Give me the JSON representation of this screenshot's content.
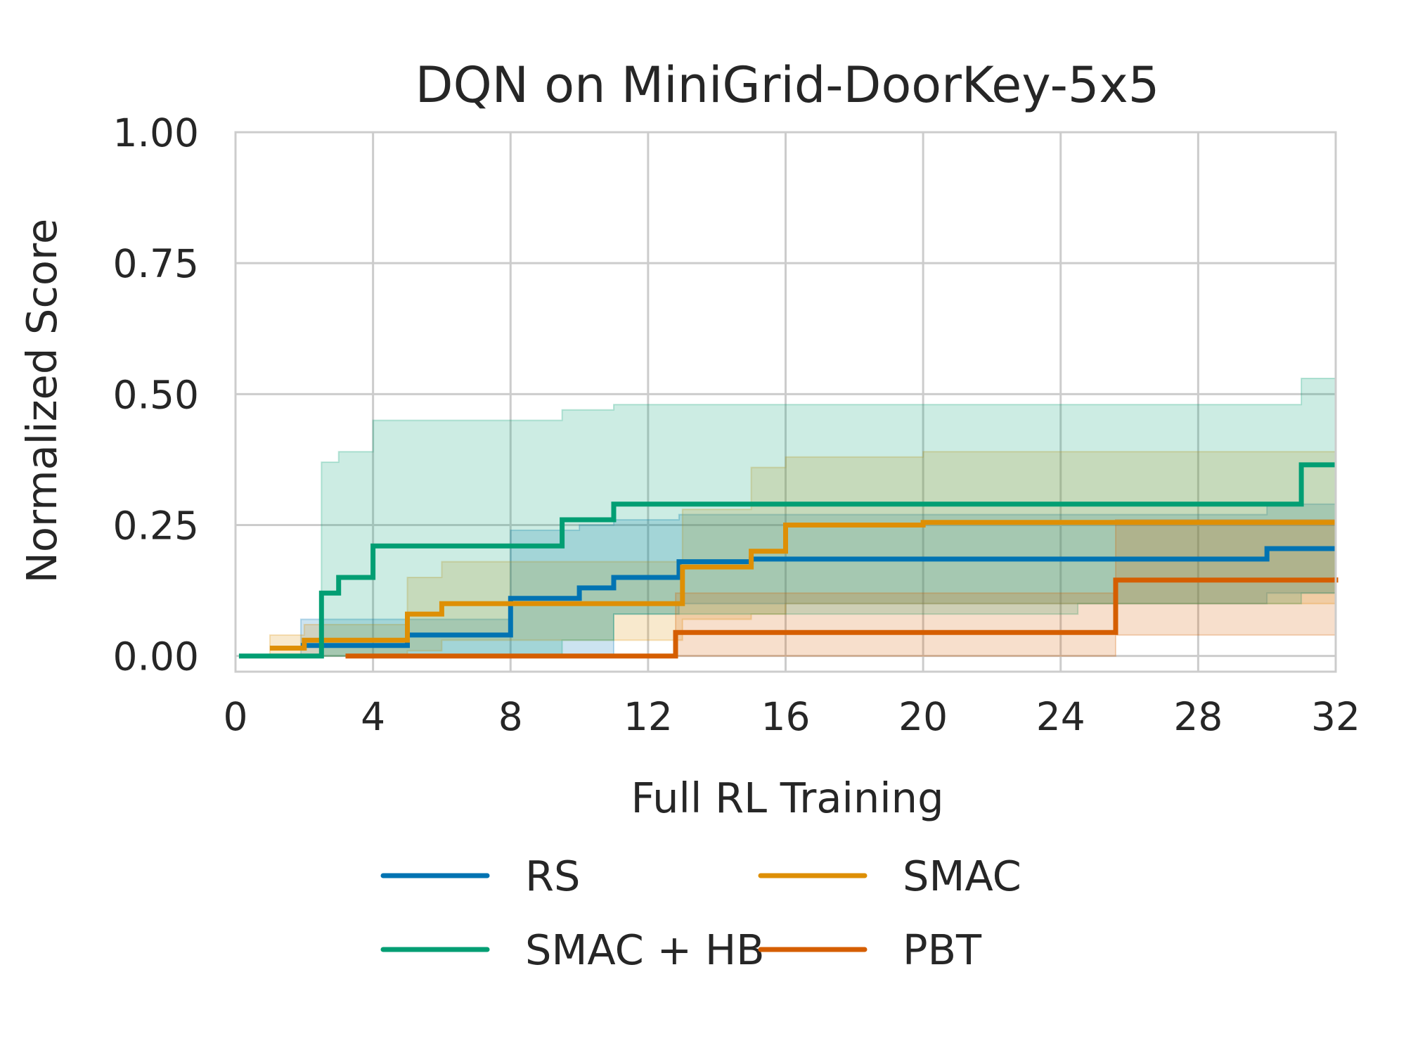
{
  "chart_data": {
    "type": "line",
    "title": "DQN on MiniGrid-DoorKey-5x5",
    "xlabel": "Full RL Training",
    "ylabel": "Normalized Score",
    "xlim": [
      0,
      32
    ],
    "ylim": [
      -0.03,
      1.0
    ],
    "xticks": [
      0,
      4,
      8,
      12,
      16,
      20,
      24,
      28,
      32
    ],
    "xtick_labels": [
      "0",
      "4",
      "8",
      "12",
      "16",
      "20",
      "24",
      "28",
      "32"
    ],
    "yticks": [
      0.0,
      0.25,
      0.5,
      0.75,
      1.0
    ],
    "ytick_labels": [
      "0.00",
      "0.25",
      "0.50",
      "0.75",
      "1.00"
    ],
    "grid": true,
    "legend": {
      "placement": "bottom-center",
      "columns": 2
    },
    "series": [
      {
        "name": "RS",
        "color": "#0173b2",
        "x": [
          1.9,
          5.0,
          8.0,
          10.0,
          11.0,
          12.9,
          15.0,
          30.0,
          32.0
        ],
        "y": [
          0.02,
          0.04,
          0.11,
          0.13,
          0.15,
          0.18,
          0.185,
          0.205,
          0.205
        ],
        "band_x": [
          1.9,
          5.0,
          8.0,
          10.0,
          11.0,
          12.9,
          15.0,
          30.0,
          32.0
        ],
        "band_low": [
          0.0,
          0.0,
          0.0,
          0.0,
          0.08,
          0.1,
          0.1,
          0.12,
          0.12
        ],
        "band_high": [
          0.07,
          0.07,
          0.24,
          0.25,
          0.26,
          0.27,
          0.27,
          0.29,
          0.3
        ]
      },
      {
        "name": "SMAC",
        "color": "#de8f05",
        "x": [
          1.0,
          2.0,
          5.0,
          6.0,
          13.0,
          15.0,
          16.0,
          20.0,
          32.0
        ],
        "y": [
          0.015,
          0.03,
          0.08,
          0.1,
          0.17,
          0.2,
          0.25,
          0.255,
          0.255
        ],
        "band_x": [
          1.0,
          2.0,
          5.0,
          6.0,
          13.0,
          15.0,
          16.0,
          20.0,
          32.0
        ],
        "band_low": [
          0.0,
          0.0,
          0.01,
          0.03,
          0.07,
          0.08,
          0.1,
          0.1,
          0.1
        ],
        "band_high": [
          0.04,
          0.06,
          0.15,
          0.18,
          0.28,
          0.36,
          0.38,
          0.39,
          0.39
        ]
      },
      {
        "name": "SMAC + HB",
        "color": "#029e73",
        "x": [
          0.1,
          2.5,
          3.0,
          4.0,
          9.5,
          11.0,
          24.5,
          31.0,
          32.0
        ],
        "y": [
          0.0,
          0.12,
          0.15,
          0.21,
          0.26,
          0.29,
          0.29,
          0.365,
          0.365
        ],
        "band_x": [
          0.1,
          2.5,
          3.0,
          4.0,
          9.5,
          11.0,
          24.5,
          31.0,
          32.0
        ],
        "band_low": [
          0.0,
          0.0,
          0.0,
          0.0,
          0.03,
          0.08,
          0.1,
          0.12,
          0.12
        ],
        "band_high": [
          0.0,
          0.37,
          0.39,
          0.45,
          0.47,
          0.48,
          0.48,
          0.53,
          0.53
        ]
      },
      {
        "name": "PBT",
        "color": "#d55e00",
        "x": [
          3.2,
          12.8,
          25.6,
          32.0
        ],
        "y": [
          0.0,
          0.045,
          0.145,
          0.15
        ],
        "band_x": [
          3.2,
          12.8,
          25.6,
          32.0
        ],
        "band_low": [
          0.0,
          0.0,
          0.04,
          0.04
        ],
        "band_high": [
          0.0,
          0.12,
          0.26,
          0.26
        ]
      }
    ]
  }
}
